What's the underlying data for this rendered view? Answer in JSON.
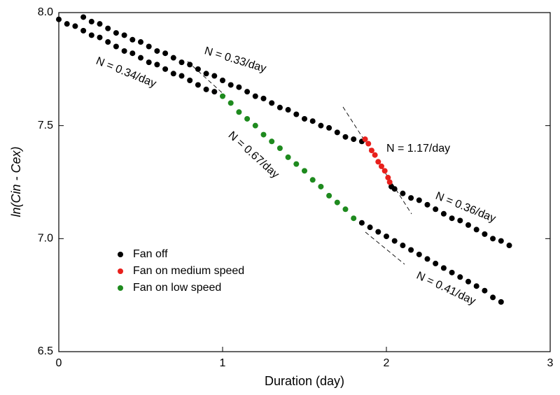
{
  "chart_data": {
    "type": "scatter",
    "x_label": "Duration (day)",
    "y_label": "ln(Cin - Cex)",
    "xlim": [
      0,
      3
    ],
    "xticks": [
      0,
      1,
      2,
      3
    ],
    "ylim": [
      6.5,
      8.0
    ],
    "yticks": [
      6.5,
      {
        "value": 7,
        "label": "7.0"
      },
      7.5,
      {
        "value": 8,
        "label": "8.0"
      }
    ],
    "legend": "lower left",
    "annotations": [
      "N = 0.34/day",
      "N = 0.33/day",
      "N = 0.67/day",
      "N = 1.17/day",
      "N = 0.36/day",
      "N = 0.41/day"
    ],
    "series": [
      {
        "name": "Fan off",
        "color": "#000000",
        "x": [
          0,
          0.05,
          0.1,
          0.15,
          0.2,
          0.25,
          0.3,
          0.35,
          0.4,
          0.45,
          0.5,
          0.55,
          0.6,
          0.65,
          0.7,
          0.75,
          0.8,
          0.85,
          0.9,
          0.95,
          0.15,
          0.2,
          0.25,
          0.3,
          0.35,
          0.4,
          0.45,
          0.5,
          0.55,
          0.6,
          0.65,
          0.7,
          0.75,
          0.8,
          0.85,
          0.9,
          0.95,
          1.0,
          1.05,
          1.1,
          1.15,
          1.2,
          1.25,
          1.3,
          1.35,
          1.4,
          1.45,
          1.5,
          1.55,
          1.6,
          1.65,
          1.7,
          1.75,
          1.8,
          1.85,
          1.85,
          1.9,
          1.95,
          2.0,
          2.05,
          2.1,
          2.15,
          2.2,
          2.25,
          2.3,
          2.35,
          2.4,
          2.45,
          2.5,
          2.55,
          2.6,
          2.65,
          2.7,
          2.03,
          2.05,
          2.1,
          2.15,
          2.2,
          2.25,
          2.3,
          2.35,
          2.4,
          2.45,
          2.5,
          2.55,
          2.6,
          2.65,
          2.7,
          2.75
        ],
        "values": [
          7.97,
          7.95,
          7.94,
          7.92,
          7.9,
          7.89,
          7.87,
          7.85,
          7.83,
          7.82,
          7.8,
          7.78,
          7.77,
          7.75,
          7.73,
          7.72,
          7.7,
          7.68,
          7.66,
          7.65,
          7.98,
          7.96,
          7.95,
          7.93,
          7.91,
          7.9,
          7.88,
          7.87,
          7.85,
          7.83,
          7.82,
          7.8,
          7.78,
          7.77,
          7.75,
          7.73,
          7.72,
          7.7,
          7.68,
          7.67,
          7.65,
          7.63,
          7.62,
          7.6,
          7.58,
          7.57,
          7.55,
          7.53,
          7.52,
          7.5,
          7.49,
          7.47,
          7.45,
          7.44,
          7.43,
          7.07,
          7.05,
          7.03,
          7.01,
          6.99,
          6.97,
          6.95,
          6.93,
          6.91,
          6.89,
          6.87,
          6.85,
          6.83,
          6.81,
          6.79,
          6.77,
          6.74,
          6.72,
          7.23,
          7.22,
          7.2,
          7.18,
          7.17,
          7.15,
          7.13,
          7.11,
          7.09,
          7.08,
          7.06,
          7.04,
          7.02,
          7.0,
          6.99,
          6.97
        ]
      },
      {
        "name": "Fan on medium speed",
        "color": "#e8201c",
        "x": [
          1.87,
          1.89,
          1.91,
          1.93,
          1.95,
          1.97,
          1.99,
          2.01,
          2.02
        ],
        "values": [
          7.44,
          7.42,
          7.39,
          7.37,
          7.34,
          7.32,
          7.3,
          7.27,
          7.25
        ]
      },
      {
        "name": "Fan on low speed",
        "color": "#1e8a1e",
        "x": [
          1.0,
          1.05,
          1.1,
          1.15,
          1.2,
          1.25,
          1.3,
          1.35,
          1.4,
          1.45,
          1.5,
          1.55,
          1.6,
          1.65,
          1.7,
          1.75,
          1.8
        ],
        "values": [
          7.63,
          7.6,
          7.56,
          7.53,
          7.5,
          7.46,
          7.43,
          7.4,
          7.36,
          7.33,
          7.3,
          7.26,
          7.23,
          7.19,
          7.16,
          7.13,
          7.09
        ]
      }
    ]
  }
}
